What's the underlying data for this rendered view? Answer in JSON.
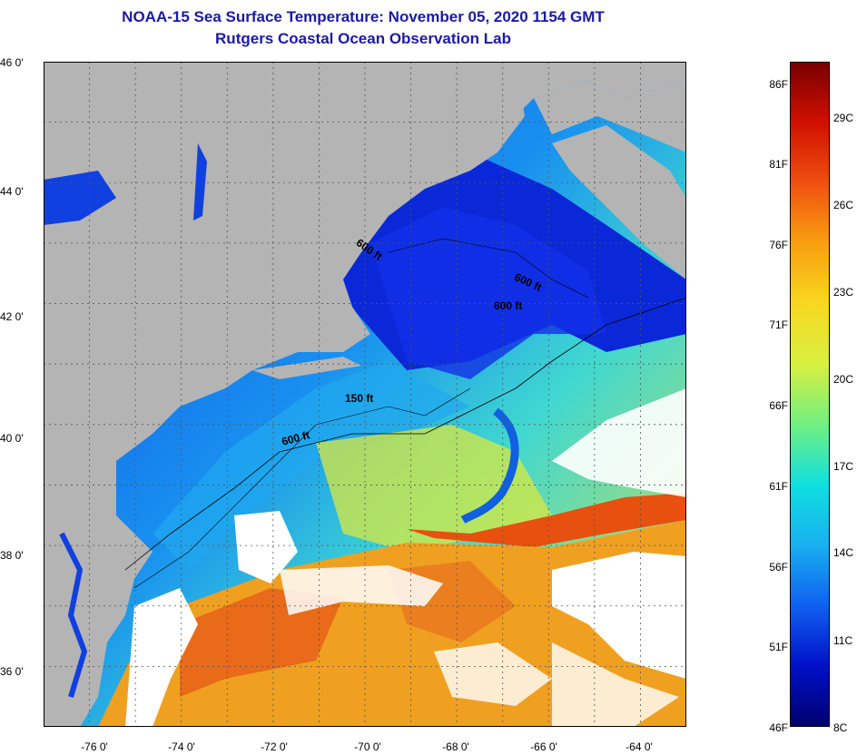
{
  "title": "NOAA-15 Sea Surface Temperature:  November 05, 2020 1154 GMT",
  "subtitle": "Rutgers Coastal Ocean Observation Lab",
  "map": {
    "region": {
      "lon_min": -77,
      "lon_max": -63,
      "lat_min": 35,
      "lat_max": 46
    },
    "lat_ticks": [
      "46 0'",
      "44 0'",
      "42 0'",
      "40 0'",
      "38 0'",
      "36 0'"
    ],
    "lon_ticks": [
      "-76 0'",
      "-74 0'",
      "-72 0'",
      "-70 0'",
      "-68 0'",
      "-66 0'",
      "-64 0'"
    ],
    "contour_labels": [
      "600 ft",
      "600 ft",
      "600 ft",
      "150 ft",
      "600 ft"
    ],
    "colors": {
      "land": "#b4b4b4",
      "cloud": "#ffffff",
      "grid": "#666666"
    }
  },
  "colorbar": {
    "fahrenheit_labels": [
      "86F",
      "81F",
      "76F",
      "71F",
      "66F",
      "61F",
      "56F",
      "51F",
      "46F"
    ],
    "celsius_labels": [
      "29C",
      "26C",
      "23C",
      "20C",
      "17C",
      "14C",
      "11C",
      "8C"
    ],
    "f_range": [
      46,
      88
    ],
    "colors": [
      "#00006e",
      "#0010c8",
      "#1060f0",
      "#18b0f0",
      "#10e0e0",
      "#70f080",
      "#d8f040",
      "#f8d820",
      "#f8a010",
      "#f05010",
      "#d01000",
      "#7a0000"
    ]
  }
}
